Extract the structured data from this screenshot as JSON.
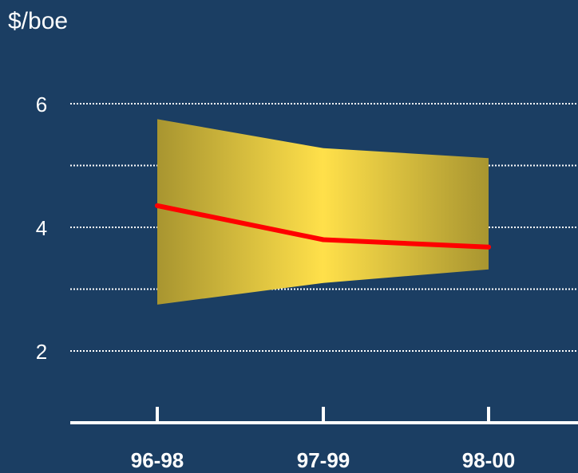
{
  "chart_data": {
    "type": "area",
    "ylabel": "$/boe",
    "categories": [
      "96-98",
      "97-99",
      "98-00"
    ],
    "yticks": [
      2,
      4,
      6
    ],
    "gridlines_at": [
      2,
      3,
      4,
      5,
      6
    ],
    "ylim": [
      1,
      6.2
    ],
    "grid": true,
    "series": [
      {
        "values": [
          4.35,
          3.8,
          3.68
        ],
        "color": "#ff0000"
      }
    ],
    "range_band": {
      "upper": [
        5.75,
        5.28,
        5.12
      ],
      "lower": [
        2.75,
        3.1,
        3.32
      ],
      "color_center": "#ffe04a",
      "color_edge": "#a89530"
    }
  },
  "colors": {
    "background": "#1b3e63",
    "axis": "#ffffff",
    "grid": "#ffffff"
  }
}
